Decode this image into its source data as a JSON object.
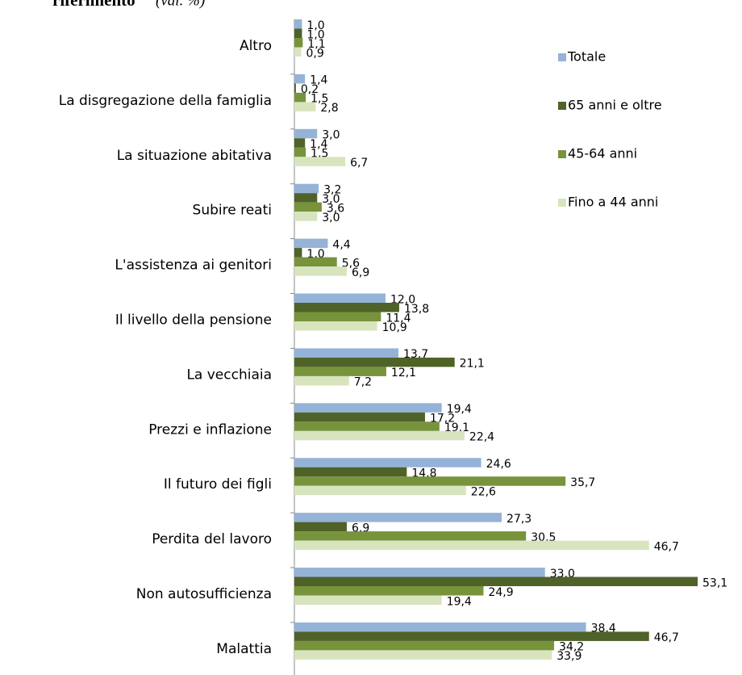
{
  "chart_data": {
    "type": "hbar",
    "title": "riferimento",
    "subtitle": "(val. %)",
    "categories": [
      "Altro",
      "La disgregazione della famiglia",
      "La situazione abitativa",
      "Subire reati",
      "L'assistenza ai genitori",
      "Il livello della pensione",
      "La vecchiaia",
      "Prezzi e inflazione",
      "Il futuro dei figli",
      "Perdita del lavoro",
      "Non autosufficienza",
      "Malattia"
    ],
    "series": [
      {
        "name": "Totale",
        "color": "#95b3d7",
        "values": [
          1.0,
          1.4,
          3.0,
          3.2,
          4.4,
          12.0,
          13.7,
          19.4,
          24.6,
          27.3,
          33.0,
          38.4
        ],
        "value_labels": [
          "1,0",
          "1,4",
          "3,0",
          "3,2",
          "4,4",
          "12,0",
          "13,7",
          "19,4",
          "24,6",
          "27,3",
          "33,0",
          "38,4"
        ]
      },
      {
        "name": "65 anni e oltre",
        "color": "#4f6228",
        "values": [
          1.0,
          0.2,
          1.4,
          3.0,
          1.0,
          13.8,
          21.1,
          17.2,
          14.8,
          6.9,
          53.1,
          46.7
        ],
        "value_labels": [
          "1,0",
          "0,2",
          "1,4",
          "3,0",
          "1,0",
          "13,8",
          "21,1",
          "17,2",
          "14,8",
          "6,9",
          "53,1",
          "46,7"
        ]
      },
      {
        "name": "45-64 anni",
        "color": "#77933c",
        "values": [
          1.1,
          1.5,
          1.5,
          3.6,
          5.6,
          11.4,
          12.1,
          19.1,
          35.7,
          30.5,
          24.9,
          34.2
        ],
        "value_labels": [
          "1,1",
          "1,5",
          "1,5",
          "3,6",
          "5,6",
          "11,4",
          "12,1",
          "19,1",
          "35,7",
          "30,5",
          "24,9",
          "34,2"
        ]
      },
      {
        "name": "Fino a 44 anni",
        "color": "#d7e4bd",
        "values": [
          0.9,
          2.8,
          6.7,
          3.0,
          6.9,
          10.9,
          7.2,
          22.4,
          22.6,
          46.7,
          19.4,
          33.9
        ],
        "value_labels": [
          "0,9",
          "2,8",
          "6,7",
          "3,0",
          "6,9",
          "10,9",
          "7,2",
          "22,4",
          "22,6",
          "46,7",
          "19,4",
          "33,9"
        ]
      }
    ],
    "legend": "right"
  }
}
